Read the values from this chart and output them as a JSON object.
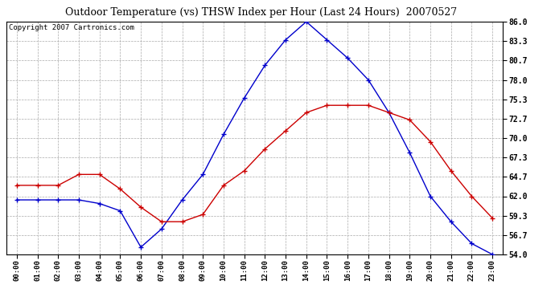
{
  "title": "Outdoor Temperature (vs) THSW Index per Hour (Last 24 Hours)  20070527",
  "copyright": "Copyright 2007 Cartronics.com",
  "hours": [
    "00:00",
    "01:00",
    "02:00",
    "03:00",
    "04:00",
    "05:00",
    "06:00",
    "07:00",
    "08:00",
    "09:00",
    "10:00",
    "11:00",
    "12:00",
    "13:00",
    "14:00",
    "15:00",
    "16:00",
    "17:00",
    "18:00",
    "19:00",
    "20:00",
    "21:00",
    "22:00",
    "23:00"
  ],
  "temp": [
    63.5,
    63.5,
    63.5,
    65.0,
    65.0,
    63.0,
    60.5,
    58.5,
    58.5,
    59.5,
    63.5,
    65.5,
    68.5,
    71.0,
    73.5,
    74.5,
    74.5,
    74.5,
    73.5,
    72.5,
    69.5,
    65.5,
    62.0,
    59.0
  ],
  "thsw": [
    61.5,
    61.5,
    61.5,
    61.5,
    61.0,
    60.0,
    55.0,
    57.5,
    61.5,
    65.0,
    70.5,
    75.5,
    80.0,
    83.5,
    86.0,
    83.5,
    81.0,
    78.0,
    73.5,
    68.0,
    62.0,
    58.5,
    55.5,
    54.0
  ],
  "ylim": [
    54.0,
    86.0
  ],
  "yticks": [
    54.0,
    56.7,
    59.3,
    62.0,
    64.7,
    67.3,
    70.0,
    72.7,
    75.3,
    78.0,
    80.7,
    83.3,
    86.0
  ],
  "temp_color": "#cc0000",
  "thsw_color": "#0000cc",
  "background_color": "#ffffff",
  "plot_bg_color": "#ffffff",
  "grid_color": "#aaaaaa",
  "title_fontsize": 9,
  "copyright_fontsize": 6.5
}
